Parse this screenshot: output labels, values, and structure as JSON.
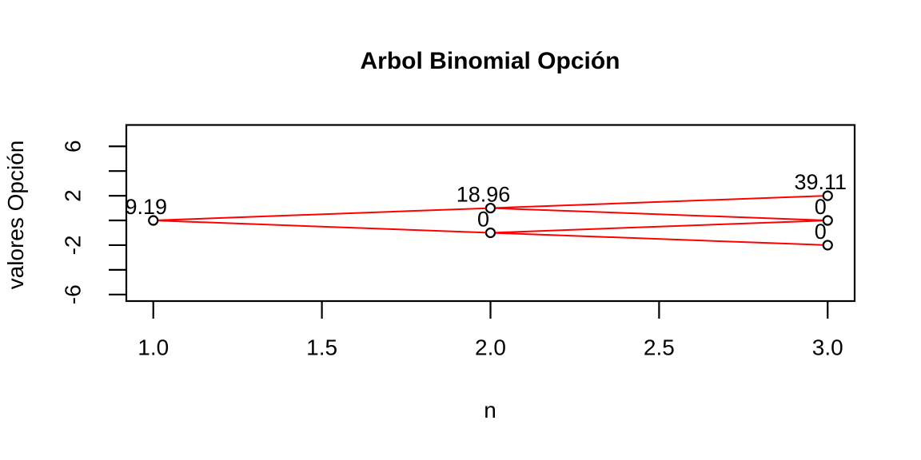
{
  "chart_data": {
    "type": "scatter",
    "subtype": "binomial-tree",
    "title": "Arbol Binomial Opción",
    "xlabel": "n",
    "ylabel": "valores Opción",
    "xlim": [
      0.92,
      3.08
    ],
    "ylim": [
      -6.53,
      7.73
    ],
    "grid": false,
    "legend": null,
    "x_ticks": {
      "values": [
        1.0,
        1.5,
        2.0,
        2.5,
        3.0
      ],
      "labels": [
        "1.0",
        "1.5",
        "2.0",
        "2.5",
        "3.0"
      ]
    },
    "y_ticks": {
      "values": [
        -6,
        -4,
        -2,
        0,
        2,
        4,
        6
      ],
      "labels": [
        "-6",
        "",
        "-2",
        "",
        "2",
        "",
        "6"
      ]
    },
    "nodes": [
      {
        "step": 1,
        "x": 1,
        "y": 0,
        "value": 9.19,
        "label": "9.19"
      },
      {
        "step": 2,
        "x": 2,
        "y": 1,
        "value": 18.96,
        "label": "18.96"
      },
      {
        "step": 2,
        "x": 2,
        "y": -1,
        "value": 0,
        "label": "0"
      },
      {
        "step": 3,
        "x": 3,
        "y": 2,
        "value": 39.11,
        "label": "39.11"
      },
      {
        "step": 3,
        "x": 3,
        "y": 0,
        "value": 0,
        "label": "0"
      },
      {
        "step": 3,
        "x": 3,
        "y": -2,
        "value": 0,
        "label": "0"
      }
    ],
    "edges": [
      [
        0,
        1
      ],
      [
        0,
        2
      ],
      [
        1,
        3
      ],
      [
        1,
        4
      ],
      [
        2,
        4
      ],
      [
        2,
        5
      ]
    ],
    "colors": {
      "edge": "#FF0000",
      "axis": "#000000",
      "node_stroke": "#000000",
      "text": "#000000",
      "background": "#FFFFFF"
    }
  }
}
